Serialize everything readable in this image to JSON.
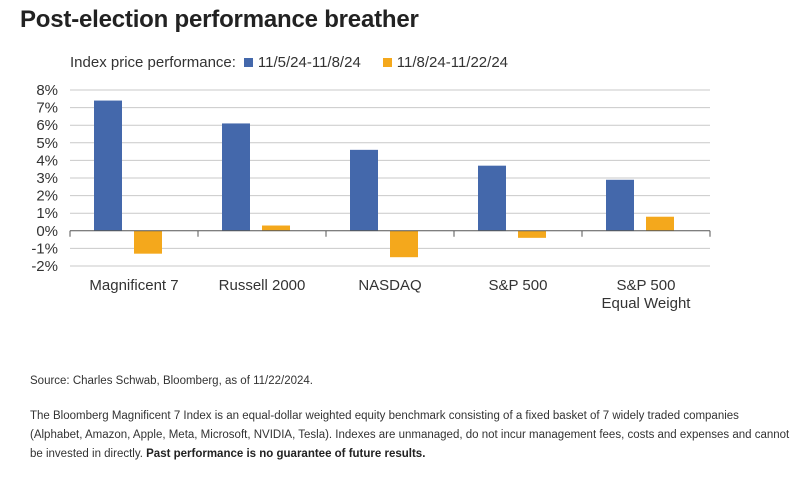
{
  "title": "Post-election performance breather",
  "legend": {
    "prefix": "Index price performance:",
    "items": [
      {
        "label": "11/5/24-11/8/24",
        "color": "#4468ab"
      },
      {
        "label": "11/8/24-11/22/24",
        "color": "#f4a81c"
      }
    ]
  },
  "chart_data": {
    "type": "bar",
    "categories": [
      [
        "Magnificent 7"
      ],
      [
        "Russell 2000"
      ],
      [
        "NASDAQ"
      ],
      [
        "S&P 500"
      ],
      [
        "S&P 500",
        "Equal Weight"
      ]
    ],
    "series": [
      {
        "name": "11/5/24-11/8/24",
        "color": "#4468ab",
        "values": [
          7.4,
          6.1,
          4.6,
          3.7,
          2.9
        ]
      },
      {
        "name": "11/8/24-11/22/24",
        "color": "#f4a81c",
        "values": [
          -1.3,
          0.3,
          -1.5,
          -0.4,
          0.8
        ]
      }
    ],
    "ylim": [
      -2,
      8
    ],
    "yticks": [
      8,
      7,
      6,
      5,
      4,
      3,
      2,
      1,
      0,
      -1,
      -2
    ],
    "ytick_suffix": "%",
    "grid": true,
    "legend_position": "top"
  },
  "source": "Source: Charles Schwab, Bloomberg, as of 11/22/2024.",
  "note": {
    "text": "The Bloomberg Magnificent 7 Index is an equal-dollar weighted equity benchmark consisting of a fixed basket of 7 widely traded companies (Alphabet, Amazon, Apple, Meta, Microsoft, NVIDIA, Tesla). Indexes are unmanaged, do not incur management fees, costs and expenses and cannot be invested in directly.",
    "bold": "Past performance is no guarantee of future results."
  }
}
